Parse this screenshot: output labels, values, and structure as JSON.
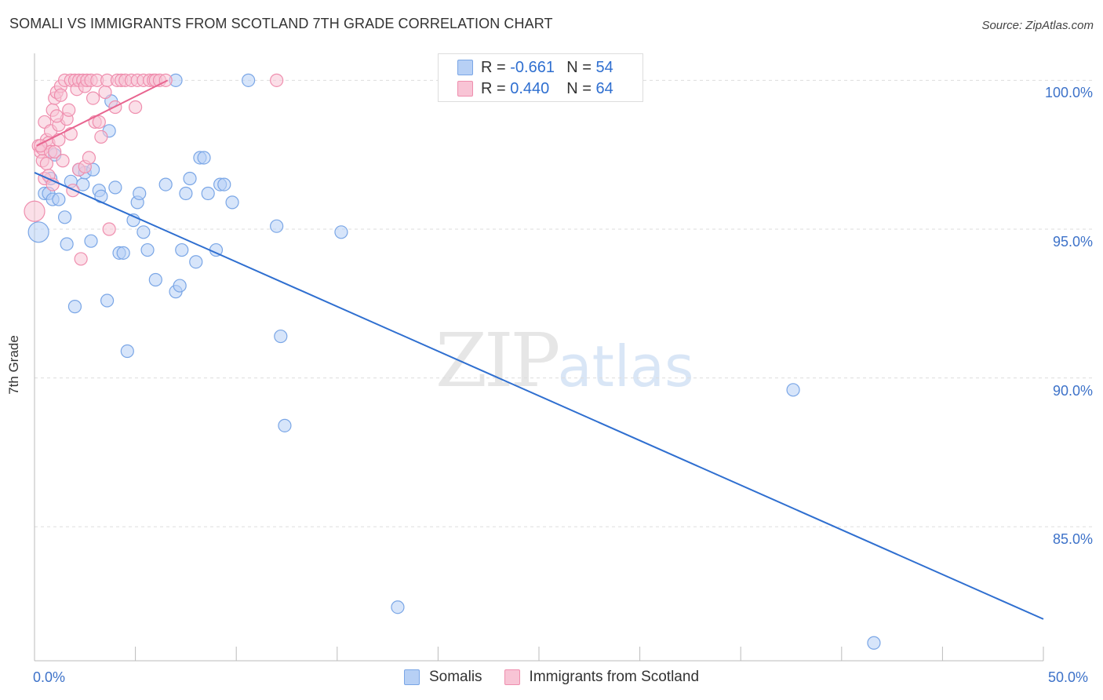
{
  "title": "SOMALI VS IMMIGRANTS FROM SCOTLAND 7TH GRADE CORRELATION CHART",
  "source": "Source: ZipAtlas.com",
  "watermark": {
    "zip": "ZIP",
    "atlas": "atlas"
  },
  "legend": {
    "r_label": "R =",
    "n_label": "N =",
    "rows": [
      {
        "r": "-0.661",
        "n": "54",
        "color": "blue"
      },
      {
        "r": "0.440",
        "n": "64",
        "color": "pink"
      }
    ]
  },
  "colors": {
    "blue_fill": "#b7d0f5",
    "blue_stroke": "#7aa6e6",
    "blue_line": "#2f6fd0",
    "pink_fill": "#f8c4d5",
    "pink_stroke": "#ef8eae",
    "pink_line": "#e86590",
    "grid": "#dddddd"
  },
  "chart_data": {
    "type": "scatter",
    "title": "SOMALI VS IMMIGRANTS FROM SCOTLAND 7TH GRADE CORRELATION CHART",
    "xlabel": "",
    "ylabel": "7th Grade",
    "xlim": [
      0,
      50
    ],
    "ylim": [
      80.5,
      100.8
    ],
    "x_tick_labels": [
      "0.0%",
      "50.0%"
    ],
    "y_ticks": [
      100,
      95,
      90,
      85
    ],
    "y_tick_labels": [
      "100.0%",
      "95.0%",
      "90.0%",
      "85.0%"
    ],
    "series": [
      {
        "name": "Somalis",
        "r": -0.661,
        "n": 54,
        "trend": {
          "x": [
            0,
            50
          ],
          "y": [
            96.9,
            81.9
          ]
        },
        "points": [
          [
            0.2,
            94.9
          ],
          [
            0.5,
            96.2
          ],
          [
            0.7,
            96.2
          ],
          [
            0.8,
            96.7
          ],
          [
            0.9,
            96.0
          ],
          [
            1.0,
            97.5
          ],
          [
            1.2,
            96.0
          ],
          [
            1.5,
            95.4
          ],
          [
            1.6,
            94.5
          ],
          [
            1.8,
            96.6
          ],
          [
            2.0,
            92.4
          ],
          [
            2.2,
            97.0
          ],
          [
            2.4,
            96.5
          ],
          [
            2.5,
            96.9
          ],
          [
            2.8,
            94.6
          ],
          [
            2.9,
            97.0
          ],
          [
            3.2,
            96.3
          ],
          [
            3.3,
            96.1
          ],
          [
            3.6,
            92.6
          ],
          [
            3.7,
            98.3
          ],
          [
            3.8,
            99.3
          ],
          [
            4.0,
            96.4
          ],
          [
            4.2,
            94.2
          ],
          [
            4.4,
            94.2
          ],
          [
            4.6,
            90.9
          ],
          [
            4.9,
            95.3
          ],
          [
            5.1,
            95.9
          ],
          [
            5.2,
            96.2
          ],
          [
            5.4,
            94.9
          ],
          [
            5.6,
            94.3
          ],
          [
            6.0,
            93.3
          ],
          [
            6.5,
            96.5
          ],
          [
            7.0,
            92.9
          ],
          [
            7.2,
            93.1
          ],
          [
            7.3,
            94.3
          ],
          [
            7.5,
            96.2
          ],
          [
            7.7,
            96.7
          ],
          [
            8.0,
            93.9
          ],
          [
            8.2,
            97.4
          ],
          [
            8.4,
            97.4
          ],
          [
            8.6,
            96.2
          ],
          [
            9.0,
            94.3
          ],
          [
            9.2,
            96.5
          ],
          [
            9.4,
            96.5
          ],
          [
            9.8,
            95.9
          ],
          [
            10.6,
            100.0
          ],
          [
            12.0,
            95.1
          ],
          [
            12.2,
            91.4
          ],
          [
            12.4,
            88.4
          ],
          [
            15.2,
            94.9
          ],
          [
            18.0,
            82.3
          ],
          [
            37.6,
            89.6
          ],
          [
            41.6,
            81.1
          ],
          [
            7.0,
            100.0
          ]
        ]
      },
      {
        "name": "Immigrants from Scotland",
        "r": 0.44,
        "n": 64,
        "trend": {
          "x": [
            0.1,
            6.6
          ],
          "y": [
            97.8,
            100.0
          ]
        },
        "points": [
          [
            0.0,
            95.6
          ],
          [
            0.2,
            97.8
          ],
          [
            0.3,
            97.6
          ],
          [
            0.4,
            97.3
          ],
          [
            0.4,
            97.7
          ],
          [
            0.5,
            98.6
          ],
          [
            0.5,
            96.7
          ],
          [
            0.6,
            97.2
          ],
          [
            0.6,
            98.0
          ],
          [
            0.7,
            97.9
          ],
          [
            0.7,
            96.8
          ],
          [
            0.8,
            98.3
          ],
          [
            0.8,
            97.6
          ],
          [
            0.9,
            99.0
          ],
          [
            0.9,
            96.5
          ],
          [
            1.0,
            99.4
          ],
          [
            1.0,
            97.6
          ],
          [
            1.1,
            99.6
          ],
          [
            1.2,
            98.5
          ],
          [
            1.2,
            98.0
          ],
          [
            1.3,
            99.8
          ],
          [
            1.3,
            99.5
          ],
          [
            1.4,
            97.3
          ],
          [
            1.5,
            100.0
          ],
          [
            1.6,
            98.7
          ],
          [
            1.7,
            99.0
          ],
          [
            1.8,
            98.2
          ],
          [
            1.8,
            100.0
          ],
          [
            1.9,
            96.3
          ],
          [
            2.0,
            100.0
          ],
          [
            2.1,
            99.7
          ],
          [
            2.2,
            100.0
          ],
          [
            2.2,
            97.0
          ],
          [
            2.3,
            94.0
          ],
          [
            2.4,
            100.0
          ],
          [
            2.5,
            99.8
          ],
          [
            2.5,
            97.1
          ],
          [
            2.6,
            100.0
          ],
          [
            2.7,
            97.4
          ],
          [
            2.8,
            100.0
          ],
          [
            2.9,
            99.4
          ],
          [
            3.0,
            98.6
          ],
          [
            3.1,
            100.0
          ],
          [
            3.2,
            98.6
          ],
          [
            3.3,
            98.1
          ],
          [
            3.5,
            99.6
          ],
          [
            3.6,
            100.0
          ],
          [
            3.7,
            95.0
          ],
          [
            4.0,
            99.1
          ],
          [
            4.1,
            100.0
          ],
          [
            4.3,
            100.0
          ],
          [
            4.5,
            100.0
          ],
          [
            4.8,
            100.0
          ],
          [
            5.0,
            99.1
          ],
          [
            5.1,
            100.0
          ],
          [
            5.4,
            100.0
          ],
          [
            5.7,
            100.0
          ],
          [
            5.9,
            100.0
          ],
          [
            6.0,
            100.0
          ],
          [
            6.2,
            100.0
          ],
          [
            6.5,
            100.0
          ],
          [
            12.0,
            100.0
          ],
          [
            1.1,
            98.8
          ],
          [
            0.3,
            97.8
          ]
        ]
      }
    ],
    "legend_position": "top-center"
  },
  "bottom_legend": [
    "Somalis",
    "Immigrants from Scotland"
  ]
}
